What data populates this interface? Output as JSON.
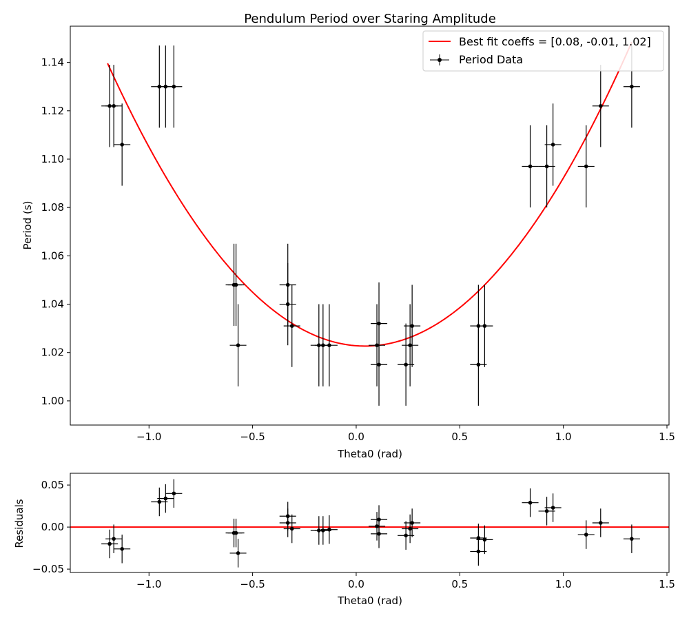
{
  "chart_data": [
    {
      "type": "scatter",
      "title": "Pendulum Period over Staring Amplitude",
      "xlabel": "Theta0 (rad)",
      "ylabel": "Period (s)",
      "xlim": [
        -1.38,
        1.51
      ],
      "ylim": [
        0.99,
        1.155
      ],
      "xticks": [
        -1.0,
        -0.5,
        0.0,
        0.5,
        1.0,
        1.5
      ],
      "xtick_labels": [
        "−1.0",
        "−0.5",
        "0.0",
        "0.5",
        "1.0",
        "1.5"
      ],
      "yticks": [
        1.0,
        1.02,
        1.04,
        1.06,
        1.08,
        1.1,
        1.12,
        1.14
      ],
      "ytick_labels": [
        "1.00",
        "1.02",
        "1.04",
        "1.06",
        "1.08",
        "1.10",
        "1.12",
        "1.14"
      ],
      "grid": false,
      "legend_position": "top-right",
      "xerr": 0.04,
      "yerr": 0.017,
      "series": [
        {
          "name": "Period Data",
          "kind": "errorbar",
          "color": "#000000",
          "x": [
            -1.19,
            -1.17,
            -1.13,
            -0.95,
            -0.92,
            -0.88,
            -0.59,
            -0.58,
            -0.57,
            -0.33,
            -0.33,
            -0.31,
            -0.18,
            -0.16,
            -0.13,
            0.1,
            0.11,
            0.11,
            0.24,
            0.26,
            0.27,
            0.59,
            0.59,
            0.62,
            0.84,
            0.92,
            0.95,
            1.11,
            1.18,
            1.33
          ],
          "y": [
            1.122,
            1.122,
            1.106,
            1.13,
            1.13,
            1.13,
            1.048,
            1.048,
            1.023,
            1.048,
            1.04,
            1.031,
            1.023,
            1.023,
            1.023,
            1.023,
            1.032,
            1.015,
            1.015,
            1.023,
            1.031,
            1.031,
            1.015,
            1.031,
            1.097,
            1.097,
            1.106,
            1.097,
            1.122,
            1.13
          ]
        },
        {
          "name": "Best fit coeffs = [0.08, -0.01, 1.02]",
          "kind": "line",
          "color": "#ff0000",
          "coeffs": [
            0.0758,
            -0.0064,
            1.0228
          ],
          "x_range": [
            -1.2,
            1.33
          ]
        }
      ]
    },
    {
      "type": "scatter",
      "title": "",
      "xlabel": "Theta0 (rad)",
      "ylabel": "Residuals",
      "xlim": [
        -1.38,
        1.51
      ],
      "ylim": [
        -0.054,
        0.064
      ],
      "xticks": [
        -1.0,
        -0.5,
        0.0,
        0.5,
        1.0,
        1.5
      ],
      "xtick_labels": [
        "−1.0",
        "−0.5",
        "0.0",
        "0.5",
        "1.0",
        "1.5"
      ],
      "yticks": [
        -0.05,
        0.0,
        0.05
      ],
      "ytick_labels": [
        "−0.05",
        "0.00",
        "0.05"
      ],
      "grid": false,
      "xerr": 0.04,
      "yerr": 0.017,
      "zero_line_color": "#ff0000",
      "series": [
        {
          "kind": "errorbar",
          "color": "#000000",
          "x": [
            -1.19,
            -1.17,
            -1.13,
            -0.95,
            -0.92,
            -0.88,
            -0.59,
            -0.58,
            -0.57,
            -0.33,
            -0.33,
            -0.31,
            -0.18,
            -0.16,
            -0.13,
            0.1,
            0.11,
            0.11,
            0.24,
            0.26,
            0.27,
            0.59,
            0.59,
            0.62,
            0.84,
            0.92,
            0.95,
            1.11,
            1.18,
            1.33
          ],
          "y": [
            -0.02,
            -0.014,
            -0.026,
            0.03,
            0.034,
            0.04,
            -0.007,
            -0.007,
            -0.031,
            0.013,
            0.005,
            -0.002,
            -0.004,
            -0.004,
            -0.003,
            0.001,
            0.009,
            -0.008,
            -0.01,
            -0.002,
            0.005,
            -0.013,
            -0.029,
            -0.015,
            0.029,
            0.019,
            0.023,
            -0.009,
            0.005,
            -0.014
          ]
        }
      ]
    }
  ]
}
